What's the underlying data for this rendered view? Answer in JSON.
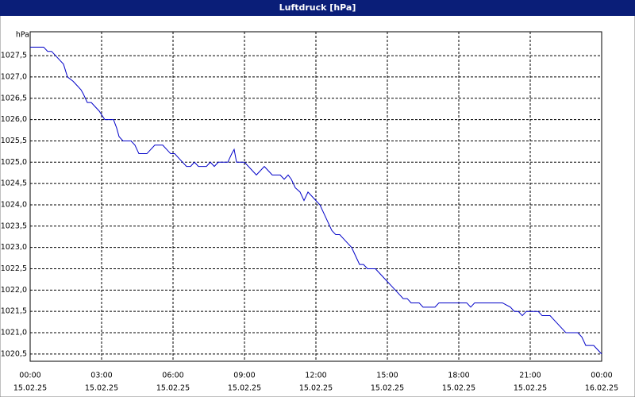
{
  "chart_data": {
    "type": "line",
    "title": "Luftdruck [hPa]",
    "y_label": "hPa",
    "x": [
      "15.02.25 00:00",
      "15.02.25 00:34",
      "15.02.25 00:44",
      "15.02.25 00:54",
      "15.02.25 01:04",
      "15.02.25 01:14",
      "15.02.25 01:24",
      "15.02.25 01:34",
      "15.02.25 01:48",
      "15.02.25 01:58",
      "15.02.25 02:08",
      "15.02.25 02:14",
      "15.02.25 02:24",
      "15.02.25 02:34",
      "15.02.25 02:44",
      "15.02.25 02:54",
      "15.02.25 03:08",
      "15.02.25 03:30",
      "15.02.25 03:38",
      "15.02.25 03:44",
      "15.02.25 03:54",
      "15.02.25 04:14",
      "15.02.25 04:24",
      "15.02.25 04:34",
      "15.02.25 04:54",
      "15.02.25 05:04",
      "15.02.25 05:14",
      "15.02.25 05:34",
      "15.02.25 05:44",
      "15.02.25 05:54",
      "15.02.25 06:04",
      "15.02.25 06:14",
      "15.02.25 06:24",
      "15.02.25 06:34",
      "15.02.25 06:44",
      "15.02.25 06:54",
      "15.02.25 07:04",
      "15.02.25 07:24",
      "15.02.25 07:34",
      "15.02.25 07:44",
      "15.02.25 07:54",
      "15.02.25 08:18",
      "15.02.25 08:28",
      "15.02.25 08:34",
      "15.02.25 08:40",
      "15.02.25 09:00",
      "15.02.25 09:10",
      "15.02.25 09:20",
      "15.02.25 09:30",
      "15.02.25 09:40",
      "15.02.25 09:50",
      "15.02.25 10:00",
      "15.02.25 10:10",
      "15.02.25 10:30",
      "15.02.25 10:40",
      "15.02.25 10:50",
      "15.02.25 10:58",
      "15.02.25 11:08",
      "15.02.25 11:20",
      "15.02.25 11:30",
      "15.02.25 11:40",
      "15.02.25 11:50",
      "15.02.25 12:00",
      "15.02.25 12:10",
      "15.02.25 12:20",
      "15.02.25 12:30",
      "15.02.25 12:40",
      "15.02.25 12:50",
      "15.02.25 13:00",
      "15.02.25 13:10",
      "15.02.25 13:20",
      "15.02.25 13:30",
      "15.02.25 13:40",
      "15.02.25 13:50",
      "15.02.25 14:00",
      "15.02.25 14:10",
      "15.02.25 14:30",
      "15.02.25 14:40",
      "15.02.25 14:50",
      "15.02.25 15:00",
      "15.02.25 15:10",
      "15.02.25 15:20",
      "15.02.25 15:30",
      "15.02.25 15:40",
      "15.02.25 15:50",
      "15.02.25 16:00",
      "15.02.25 16:20",
      "15.02.25 16:30",
      "15.02.25 17:00",
      "15.02.25 17:10",
      "15.02.25 18:20",
      "15.02.25 18:30",
      "15.02.25 18:40",
      "15.02.25 19:50",
      "15.02.25 20:10",
      "15.02.25 20:20",
      "15.02.25 20:30",
      "15.02.25 20:40",
      "15.02.25 20:50",
      "15.02.25 21:20",
      "15.02.25 21:30",
      "15.02.25 21:50",
      "15.02.25 22:00",
      "15.02.25 22:10",
      "15.02.25 22:20",
      "15.02.25 22:30",
      "15.02.25 23:00",
      "15.02.25 23:10",
      "15.02.25 23:20",
      "15.02.25 23:40",
      "15.02.25 23:50",
      "16.02.25 00:00"
    ],
    "values": [
      1027.7,
      1027.7,
      1027.6,
      1027.6,
      1027.5,
      1027.4,
      1027.3,
      1027.0,
      1026.9,
      1026.8,
      1026.7,
      1026.6,
      1026.4,
      1026.4,
      1026.3,
      1026.2,
      1026.0,
      1026.0,
      1025.8,
      1025.6,
      1025.5,
      1025.5,
      1025.4,
      1025.2,
      1025.2,
      1025.3,
      1025.4,
      1025.4,
      1025.3,
      1025.2,
      1025.2,
      1025.1,
      1025.0,
      1024.9,
      1024.9,
      1025.0,
      1024.9,
      1024.9,
      1025.0,
      1024.9,
      1025.0,
      1025.0,
      1025.2,
      1025.3,
      1025.0,
      1025.0,
      1024.9,
      1024.8,
      1024.7,
      1024.8,
      1024.9,
      1024.8,
      1024.7,
      1024.7,
      1024.6,
      1024.7,
      1024.6,
      1024.4,
      1024.3,
      1024.1,
      1024.3,
      1024.2,
      1024.1,
      1024.0,
      1023.8,
      1023.6,
      1023.4,
      1023.3,
      1023.3,
      1023.2,
      1023.1,
      1023.0,
      1022.8,
      1022.6,
      1022.6,
      1022.5,
      1022.5,
      1022.4,
      1022.3,
      1022.2,
      1022.1,
      1022.0,
      1021.9,
      1021.8,
      1021.8,
      1021.7,
      1021.7,
      1021.6,
      1021.6,
      1021.7,
      1021.7,
      1021.6,
      1021.7,
      1021.7,
      1021.6,
      1021.5,
      1021.5,
      1021.4,
      1021.5,
      1021.5,
      1021.4,
      1021.4,
      1021.3,
      1021.2,
      1021.1,
      1021.0,
      1021.0,
      1020.9,
      1020.7,
      1020.7,
      1020.6,
      1020.5
    ],
    "color": "#0000c8",
    "xlim": [
      "15.02.25 00:00",
      "16.02.25 00:00"
    ],
    "xticks": [
      {
        "value": "15.02.25 00:00",
        "label": [
          "00:00",
          "15.02.25"
        ]
      },
      {
        "value": "15.02.25 03:00",
        "label": [
          "03:00",
          "15.02.25"
        ]
      },
      {
        "value": "15.02.25 06:00",
        "label": [
          "06:00",
          "15.02.25"
        ]
      },
      {
        "value": "15.02.25 09:00",
        "label": [
          "09:00",
          "15.02.25"
        ]
      },
      {
        "value": "15.02.25 12:00",
        "label": [
          "12:00",
          "15.02.25"
        ]
      },
      {
        "value": "15.02.25 15:00",
        "label": [
          "15:00",
          "15.02.25"
        ]
      },
      {
        "value": "15.02.25 18:00",
        "label": [
          "18:00",
          "15.02.25"
        ]
      },
      {
        "value": "15.02.25 21:00",
        "label": [
          "21:00",
          "15.02.25"
        ]
      },
      {
        "value": "16.02.25 00:00",
        "label": [
          "00:00",
          "16.02.25"
        ]
      }
    ],
    "ylim": [
      1020.33,
      1028.06
    ],
    "yticks": [
      {
        "value": 1020.5,
        "label": "1020,5"
      },
      {
        "value": 1021,
        "label": "1021,0"
      },
      {
        "value": 1021.5,
        "label": "1021,5"
      },
      {
        "value": 1022,
        "label": "1022,0"
      },
      {
        "value": 1022.5,
        "label": "1022,5"
      },
      {
        "value": 1023,
        "label": "1023,0"
      },
      {
        "value": 1023.5,
        "label": "1023,5"
      },
      {
        "value": 1024,
        "label": "1024,0"
      },
      {
        "value": 1024.5,
        "label": "1024,5"
      },
      {
        "value": 1025,
        "label": "1025,0"
      },
      {
        "value": 1025.5,
        "label": "1025,5"
      },
      {
        "value": 1026,
        "label": "1026,0"
      },
      {
        "value": 1026.5,
        "label": "1026,5"
      },
      {
        "value": 1027,
        "label": "1027,0"
      },
      {
        "value": 1027.5,
        "label": "1027,5"
      }
    ],
    "grid": true
  }
}
